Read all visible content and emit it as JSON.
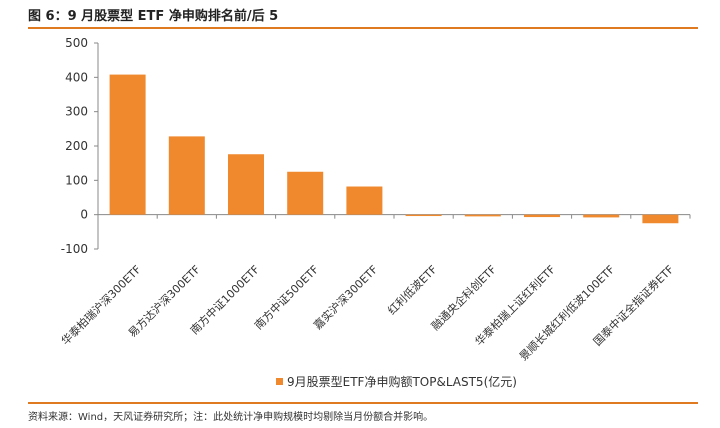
{
  "figure": {
    "title": "图 6：9 月股票型 ETF 净申购排名前/后 5",
    "source": "资料来源：Wind，天风证券研究所；注：此处统计净申购规模时均剔除当月份额合并影响。"
  },
  "colors": {
    "bar": "#f0892d",
    "accent": "#e07a20",
    "axis": "#888888"
  },
  "chart_data": {
    "type": "bar",
    "categories": [
      "华泰柏瑞沪深300ETF",
      "易方达沪深300ETF",
      "南方中证1000ETF",
      "南方中证500ETF",
      "嘉实沪深300ETF",
      "红利低波ETF",
      "融通央企科创ETF",
      "华泰柏瑞上证红利ETF",
      "景顺长城红利低波100ETF",
      "国泰中证全指证券ETF"
    ],
    "series": [
      {
        "name": "9月股票型ETF净申购额TOP&LAST5(亿元)",
        "values": [
          408,
          228,
          176,
          125,
          82,
          -4,
          -5,
          -7,
          -8,
          -25
        ]
      }
    ],
    "yticks": [
      -100,
      0,
      100,
      200,
      300,
      400,
      500
    ],
    "ylim": [
      -100,
      500
    ],
    "legend_position": "bottom",
    "grid": false
  }
}
